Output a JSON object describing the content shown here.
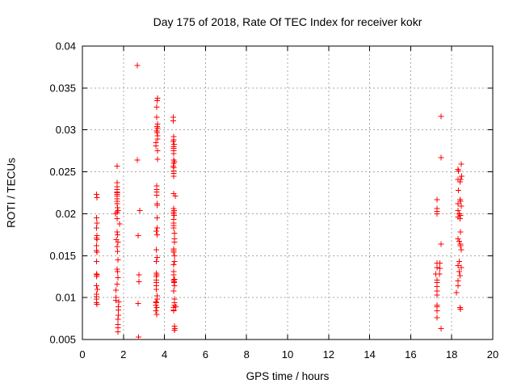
{
  "chart_data": {
    "type": "scatter",
    "title": "Day 175 of 2018, Rate Of TEC Index for receiver kokr",
    "xlabel": "GPS time / hours",
    "ylabel": "ROTI / TECUs",
    "xlim": [
      0,
      20
    ],
    "ylim": [
      0.005,
      0.04
    ],
    "xticks": {
      "values": [
        0,
        2,
        4,
        6,
        8,
        10,
        12,
        14,
        16,
        18,
        20
      ],
      "labels": [
        "0",
        "2",
        "4",
        "6",
        "8",
        "10",
        "12",
        "14",
        "16",
        "18",
        "20"
      ]
    },
    "yticks": {
      "values": [
        0.005,
        0.01,
        0.015,
        0.02,
        0.025,
        0.03,
        0.035,
        0.04
      ],
      "labels": [
        "0.005",
        "0.01",
        "0.015",
        "0.02",
        "0.025",
        "0.03",
        "0.035",
        "0.04"
      ]
    },
    "grid": true,
    "legend": false,
    "marker": {
      "shape": "plus",
      "color": "#ff0000",
      "size": 7
    },
    "series": [
      {
        "name": "ROTI",
        "points": [
          [
            0.68,
            0.0223
          ],
          [
            0.7,
            0.0219
          ],
          [
            0.68,
            0.0195
          ],
          [
            0.71,
            0.0189
          ],
          [
            0.68,
            0.0183
          ],
          [
            0.7,
            0.0174
          ],
          [
            0.68,
            0.0171
          ],
          [
            0.7,
            0.0169
          ],
          [
            0.68,
            0.0162
          ],
          [
            0.68,
            0.0156
          ],
          [
            0.7,
            0.0154
          ],
          [
            0.68,
            0.0143
          ],
          [
            0.68,
            0.0128
          ],
          [
            0.7,
            0.0127
          ],
          [
            0.69,
            0.0125
          ],
          [
            0.68,
            0.0114
          ],
          [
            0.72,
            0.011
          ],
          [
            0.68,
            0.0104
          ],
          [
            0.68,
            0.0101
          ],
          [
            0.68,
            0.0098
          ],
          [
            0.69,
            0.0094
          ],
          [
            0.7,
            0.0092
          ],
          [
            1.69,
            0.0257
          ],
          [
            1.69,
            0.0237
          ],
          [
            1.69,
            0.0232
          ],
          [
            1.69,
            0.0229
          ],
          [
            1.69,
            0.0226
          ],
          [
            1.7,
            0.0225
          ],
          [
            1.69,
            0.0223
          ],
          [
            1.7,
            0.0221
          ],
          [
            1.69,
            0.0218
          ],
          [
            1.69,
            0.0215
          ],
          [
            1.69,
            0.0212
          ],
          [
            1.71,
            0.0207
          ],
          [
            1.73,
            0.0204
          ],
          [
            1.7,
            0.0202
          ],
          [
            1.62,
            0.02
          ],
          [
            1.69,
            0.0194
          ],
          [
            1.81,
            0.0188
          ],
          [
            1.7,
            0.0178
          ],
          [
            1.72,
            0.0175
          ],
          [
            1.66,
            0.0169
          ],
          [
            1.74,
            0.0166
          ],
          [
            1.7,
            0.0161
          ],
          [
            1.72,
            0.0155
          ],
          [
            1.73,
            0.0145
          ],
          [
            1.7,
            0.0134
          ],
          [
            1.72,
            0.0131
          ],
          [
            1.73,
            0.0124
          ],
          [
            1.7,
            0.0116
          ],
          [
            1.63,
            0.0109
          ],
          [
            1.63,
            0.01
          ],
          [
            1.64,
            0.0097
          ],
          [
            1.78,
            0.0095
          ],
          [
            1.75,
            0.0089
          ],
          [
            1.76,
            0.0085
          ],
          [
            1.75,
            0.0079
          ],
          [
            1.74,
            0.0074
          ],
          [
            1.73,
            0.0068
          ],
          [
            1.73,
            0.0064
          ],
          [
            1.73,
            0.0059
          ],
          [
            2.68,
            0.0377
          ],
          [
            2.68,
            0.0264
          ],
          [
            2.8,
            0.0204
          ],
          [
            2.72,
            0.0174
          ],
          [
            2.76,
            0.0127
          ],
          [
            2.76,
            0.0119
          ],
          [
            2.72,
            0.0093
          ],
          [
            2.74,
            0.0053
          ],
          [
            3.66,
            0.0338
          ],
          [
            3.64,
            0.0335
          ],
          [
            3.63,
            0.0327
          ],
          [
            3.62,
            0.0315
          ],
          [
            3.66,
            0.0307
          ],
          [
            3.64,
            0.0304
          ],
          [
            3.66,
            0.0302
          ],
          [
            3.62,
            0.0299
          ],
          [
            3.65,
            0.0297
          ],
          [
            3.66,
            0.0293
          ],
          [
            3.66,
            0.0289
          ],
          [
            3.58,
            0.0285
          ],
          [
            3.58,
            0.0281
          ],
          [
            3.66,
            0.0275
          ],
          [
            3.66,
            0.0265
          ],
          [
            3.63,
            0.0233
          ],
          [
            3.63,
            0.0229
          ],
          [
            3.63,
            0.0226
          ],
          [
            3.63,
            0.0222
          ],
          [
            3.65,
            0.0212
          ],
          [
            3.64,
            0.021
          ],
          [
            3.65,
            0.0195
          ],
          [
            3.65,
            0.0183
          ],
          [
            3.6,
            0.0179
          ],
          [
            3.65,
            0.0175
          ],
          [
            3.6,
            0.0157
          ],
          [
            3.65,
            0.0148
          ],
          [
            3.6,
            0.0143
          ],
          [
            3.6,
            0.0129
          ],
          [
            3.62,
            0.0127
          ],
          [
            3.61,
            0.0125
          ],
          [
            3.6,
            0.0121
          ],
          [
            3.6,
            0.0118
          ],
          [
            3.6,
            0.0114
          ],
          [
            3.6,
            0.011
          ],
          [
            3.65,
            0.0102
          ],
          [
            3.65,
            0.0098
          ],
          [
            3.58,
            0.0095
          ],
          [
            3.6,
            0.0094
          ],
          [
            3.58,
            0.0091
          ],
          [
            3.62,
            0.0088
          ],
          [
            3.58,
            0.0084
          ],
          [
            3.62,
            0.008
          ],
          [
            4.42,
            0.0315
          ],
          [
            4.42,
            0.0311
          ],
          [
            4.45,
            0.0292
          ],
          [
            4.45,
            0.0288
          ],
          [
            4.42,
            0.0286
          ],
          [
            4.46,
            0.0283
          ],
          [
            4.44,
            0.028
          ],
          [
            4.45,
            0.0278
          ],
          [
            4.44,
            0.0275
          ],
          [
            4.45,
            0.0272
          ],
          [
            4.45,
            0.0264
          ],
          [
            4.49,
            0.0262
          ],
          [
            4.45,
            0.026
          ],
          [
            4.43,
            0.0257
          ],
          [
            4.44,
            0.0255
          ],
          [
            4.45,
            0.0251
          ],
          [
            4.45,
            0.0248
          ],
          [
            4.44,
            0.0245
          ],
          [
            4.45,
            0.0224
          ],
          [
            4.53,
            0.0221
          ],
          [
            4.44,
            0.0206
          ],
          [
            4.46,
            0.0204
          ],
          [
            4.44,
            0.0202
          ],
          [
            4.45,
            0.02
          ],
          [
            4.46,
            0.0198
          ],
          [
            4.44,
            0.0193
          ],
          [
            4.44,
            0.0189
          ],
          [
            4.45,
            0.0186
          ],
          [
            4.44,
            0.0183
          ],
          [
            4.49,
            0.0177
          ],
          [
            4.49,
            0.017
          ],
          [
            4.49,
            0.0166
          ],
          [
            4.44,
            0.0158
          ],
          [
            4.45,
            0.0156
          ],
          [
            4.44,
            0.0154
          ],
          [
            4.49,
            0.015
          ],
          [
            4.49,
            0.0143
          ],
          [
            4.44,
            0.0139
          ],
          [
            4.44,
            0.0131
          ],
          [
            4.44,
            0.0127
          ],
          [
            4.49,
            0.0122
          ],
          [
            4.45,
            0.0121
          ],
          [
            4.47,
            0.0119
          ],
          [
            4.46,
            0.0118
          ],
          [
            4.49,
            0.0114
          ],
          [
            4.44,
            0.0108
          ],
          [
            4.49,
            0.0098
          ],
          [
            4.49,
            0.0094
          ],
          [
            4.49,
            0.0091
          ],
          [
            4.55,
            0.0089
          ],
          [
            4.45,
            0.0088
          ],
          [
            4.45,
            0.0085
          ],
          [
            4.45,
            0.0084
          ],
          [
            4.48,
            0.0066
          ],
          [
            4.5,
            0.0063
          ],
          [
            4.49,
            0.0061
          ],
          [
            17.48,
            0.0316
          ],
          [
            17.48,
            0.0267
          ],
          [
            17.28,
            0.0217
          ],
          [
            17.28,
            0.0206
          ],
          [
            17.28,
            0.0203
          ],
          [
            17.28,
            0.02
          ],
          [
            17.48,
            0.0164
          ],
          [
            17.28,
            0.0141
          ],
          [
            17.43,
            0.0141
          ],
          [
            17.28,
            0.0136
          ],
          [
            17.43,
            0.0135
          ],
          [
            17.22,
            0.0128
          ],
          [
            17.4,
            0.0128
          ],
          [
            17.28,
            0.0121
          ],
          [
            17.28,
            0.0118
          ],
          [
            17.28,
            0.0113
          ],
          [
            17.28,
            0.0108
          ],
          [
            17.28,
            0.0103
          ],
          [
            17.28,
            0.0091
          ],
          [
            17.28,
            0.0089
          ],
          [
            17.28,
            0.0084
          ],
          [
            17.28,
            0.0076
          ],
          [
            17.48,
            0.0063
          ],
          [
            18.46,
            0.0259
          ],
          [
            18.31,
            0.0253
          ],
          [
            18.33,
            0.0251
          ],
          [
            18.49,
            0.0245
          ],
          [
            18.43,
            0.0241
          ],
          [
            18.31,
            0.0241
          ],
          [
            18.4,
            0.0238
          ],
          [
            18.33,
            0.0228
          ],
          [
            18.4,
            0.0217
          ],
          [
            18.43,
            0.0215
          ],
          [
            18.31,
            0.0212
          ],
          [
            18.46,
            0.0209
          ],
          [
            18.31,
            0.0204
          ],
          [
            18.36,
            0.02
          ],
          [
            18.43,
            0.0198
          ],
          [
            18.31,
            0.0196
          ],
          [
            18.4,
            0.0194
          ],
          [
            18.43,
            0.0178
          ],
          [
            18.31,
            0.017
          ],
          [
            18.37,
            0.0167
          ],
          [
            18.43,
            0.0164
          ],
          [
            18.43,
            0.0162
          ],
          [
            18.46,
            0.0157
          ],
          [
            18.37,
            0.0143
          ],
          [
            18.31,
            0.0138
          ],
          [
            18.46,
            0.0136
          ],
          [
            18.37,
            0.0131
          ],
          [
            18.4,
            0.0126
          ],
          [
            18.31,
            0.012
          ],
          [
            18.31,
            0.0114
          ],
          [
            18.23,
            0.0106
          ],
          [
            18.4,
            0.0088
          ],
          [
            18.42,
            0.0086
          ]
        ]
      }
    ]
  },
  "style": {
    "background": "#ffffff",
    "frame_color": "#000000",
    "grid_color": "#a8a8a8",
    "text_color": "#000000",
    "marker_color": "#ff0000"
  }
}
